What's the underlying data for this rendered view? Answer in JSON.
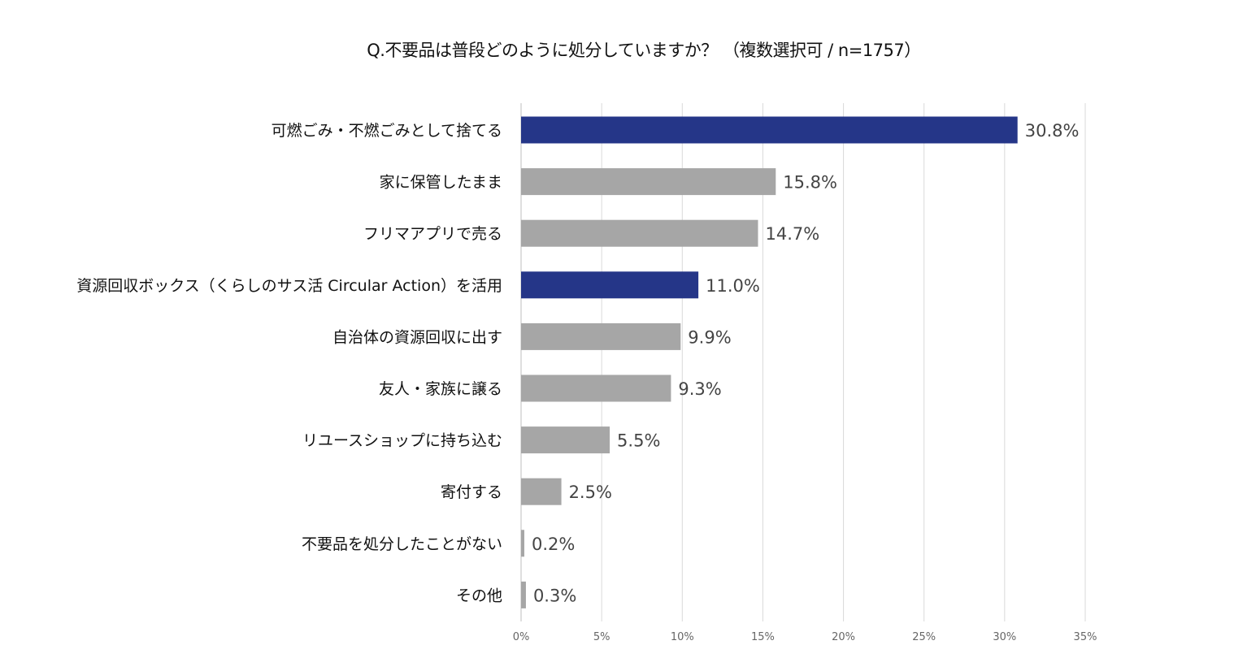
{
  "chart_data": {
    "type": "bar",
    "orientation": "horizontal",
    "title": "Q.不要品は普段どのように処分していますか？ （複数選択可 / n=1757）",
    "categories": [
      "可燃ごみ・不燃ごみとして捨てる",
      "家に保管したまま",
      "フリマアプリで売る",
      "資源回収ボックス（くらしのサス活 Circular Action）を活用",
      "自治体の資源回収に出す",
      "友人・家族に譲る",
      "リユースショップに持ち込む",
      "寄付する",
      "不要品を処分したことがない",
      "その他"
    ],
    "values": [
      30.8,
      15.8,
      14.7,
      11.0,
      9.9,
      9.3,
      5.5,
      2.5,
      0.2,
      0.3
    ],
    "data_labels": [
      "30.8%",
      "15.8%",
      "14.7%",
      "11.0%",
      "9.9%",
      "9.3%",
      "5.5%",
      "2.5%",
      "0.2%",
      "0.3%"
    ],
    "highlighted": [
      true,
      false,
      false,
      true,
      false,
      false,
      false,
      false,
      false,
      false
    ],
    "xlim": [
      0,
      35
    ],
    "x_ticks": [
      "0%",
      "5%",
      "10%",
      "15%",
      "20%",
      "25%",
      "30%",
      "35%"
    ],
    "xlabel": "",
    "ylabel": "",
    "grid": "vertical",
    "legend": "none",
    "colors": {
      "highlight": "#253688",
      "default": "#a6a6a6",
      "grid": "#d9d9d9"
    }
  }
}
